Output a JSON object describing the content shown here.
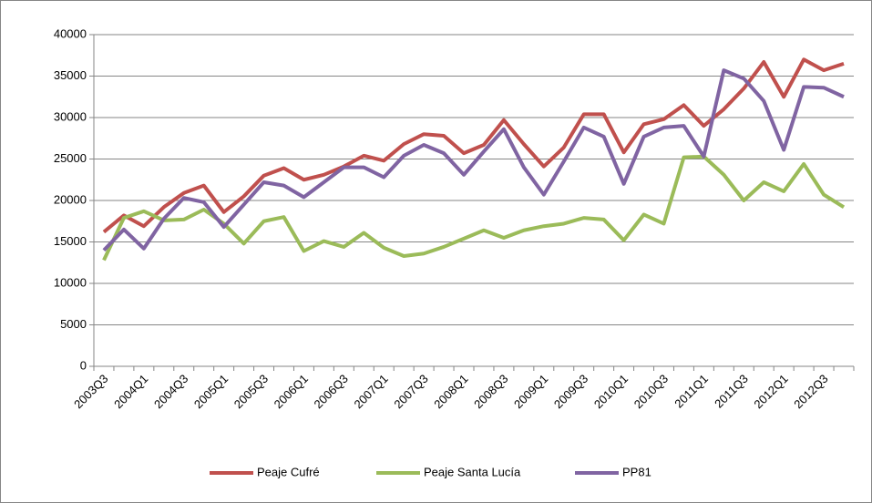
{
  "chart_data": {
    "type": "line",
    "categories": [
      "2003Q3",
      null,
      "2004Q1",
      null,
      "2004Q3",
      null,
      "2005Q1",
      null,
      "2005Q3",
      null,
      "2006Q1",
      null,
      "2006Q3",
      null,
      "2007Q1",
      null,
      "2007Q3",
      null,
      "2008Q1",
      null,
      "2008Q3",
      null,
      "2009Q1",
      null,
      "2009Q3",
      null,
      "2010Q1",
      null,
      "2010Q3",
      null,
      "2011Q1",
      null,
      "2011Q3",
      null,
      "2012Q1",
      null,
      "2012Q3",
      null
    ],
    "series": [
      {
        "name": "Peaje Cufré",
        "color": "#c0504d",
        "values": [
          16200,
          18200,
          16900,
          19200,
          20900,
          21800,
          18600,
          20500,
          23000,
          23900,
          22500,
          23100,
          24100,
          25400,
          24800,
          26800,
          28000,
          27800,
          25700,
          26700,
          29700,
          26800,
          24100,
          26400,
          30400,
          30400,
          25800,
          29200,
          29800,
          31500,
          29000,
          31000,
          33500,
          36700,
          32500,
          37000,
          35700,
          36500
        ]
      },
      {
        "name": "Peaje Santa Lucía",
        "color": "#9bbb59",
        "values": [
          12800,
          17900,
          18700,
          17600,
          17700,
          18900,
          17200,
          14800,
          17500,
          18000,
          13900,
          15100,
          14400,
          16100,
          14300,
          13300,
          13600,
          14400,
          15400,
          16400,
          15500,
          16400,
          16900,
          17200,
          17900,
          17700,
          15200,
          18300,
          17200,
          25200,
          25300,
          23100,
          20000,
          22200,
          21100,
          24400,
          20700,
          19200
        ]
      },
      {
        "name": "PP81",
        "color": "#8064a2",
        "values": [
          14000,
          16500,
          14200,
          17800,
          20300,
          19800,
          16800,
          19500,
          22200,
          21800,
          20400,
          22200,
          24000,
          24000,
          22800,
          25400,
          26700,
          25700,
          23100,
          25900,
          28600,
          24000,
          20700,
          24700,
          28800,
          27700,
          22000,
          27700,
          28800,
          29000,
          25300,
          35700,
          34700,
          32000,
          26100,
          33700,
          33600,
          32500
        ]
      }
    ],
    "ylim": [
      0,
      40000
    ],
    "yticks": [
      0,
      5000,
      10000,
      15000,
      20000,
      25000,
      30000,
      35000,
      40000
    ],
    "grid": true,
    "legend": "bottom"
  }
}
